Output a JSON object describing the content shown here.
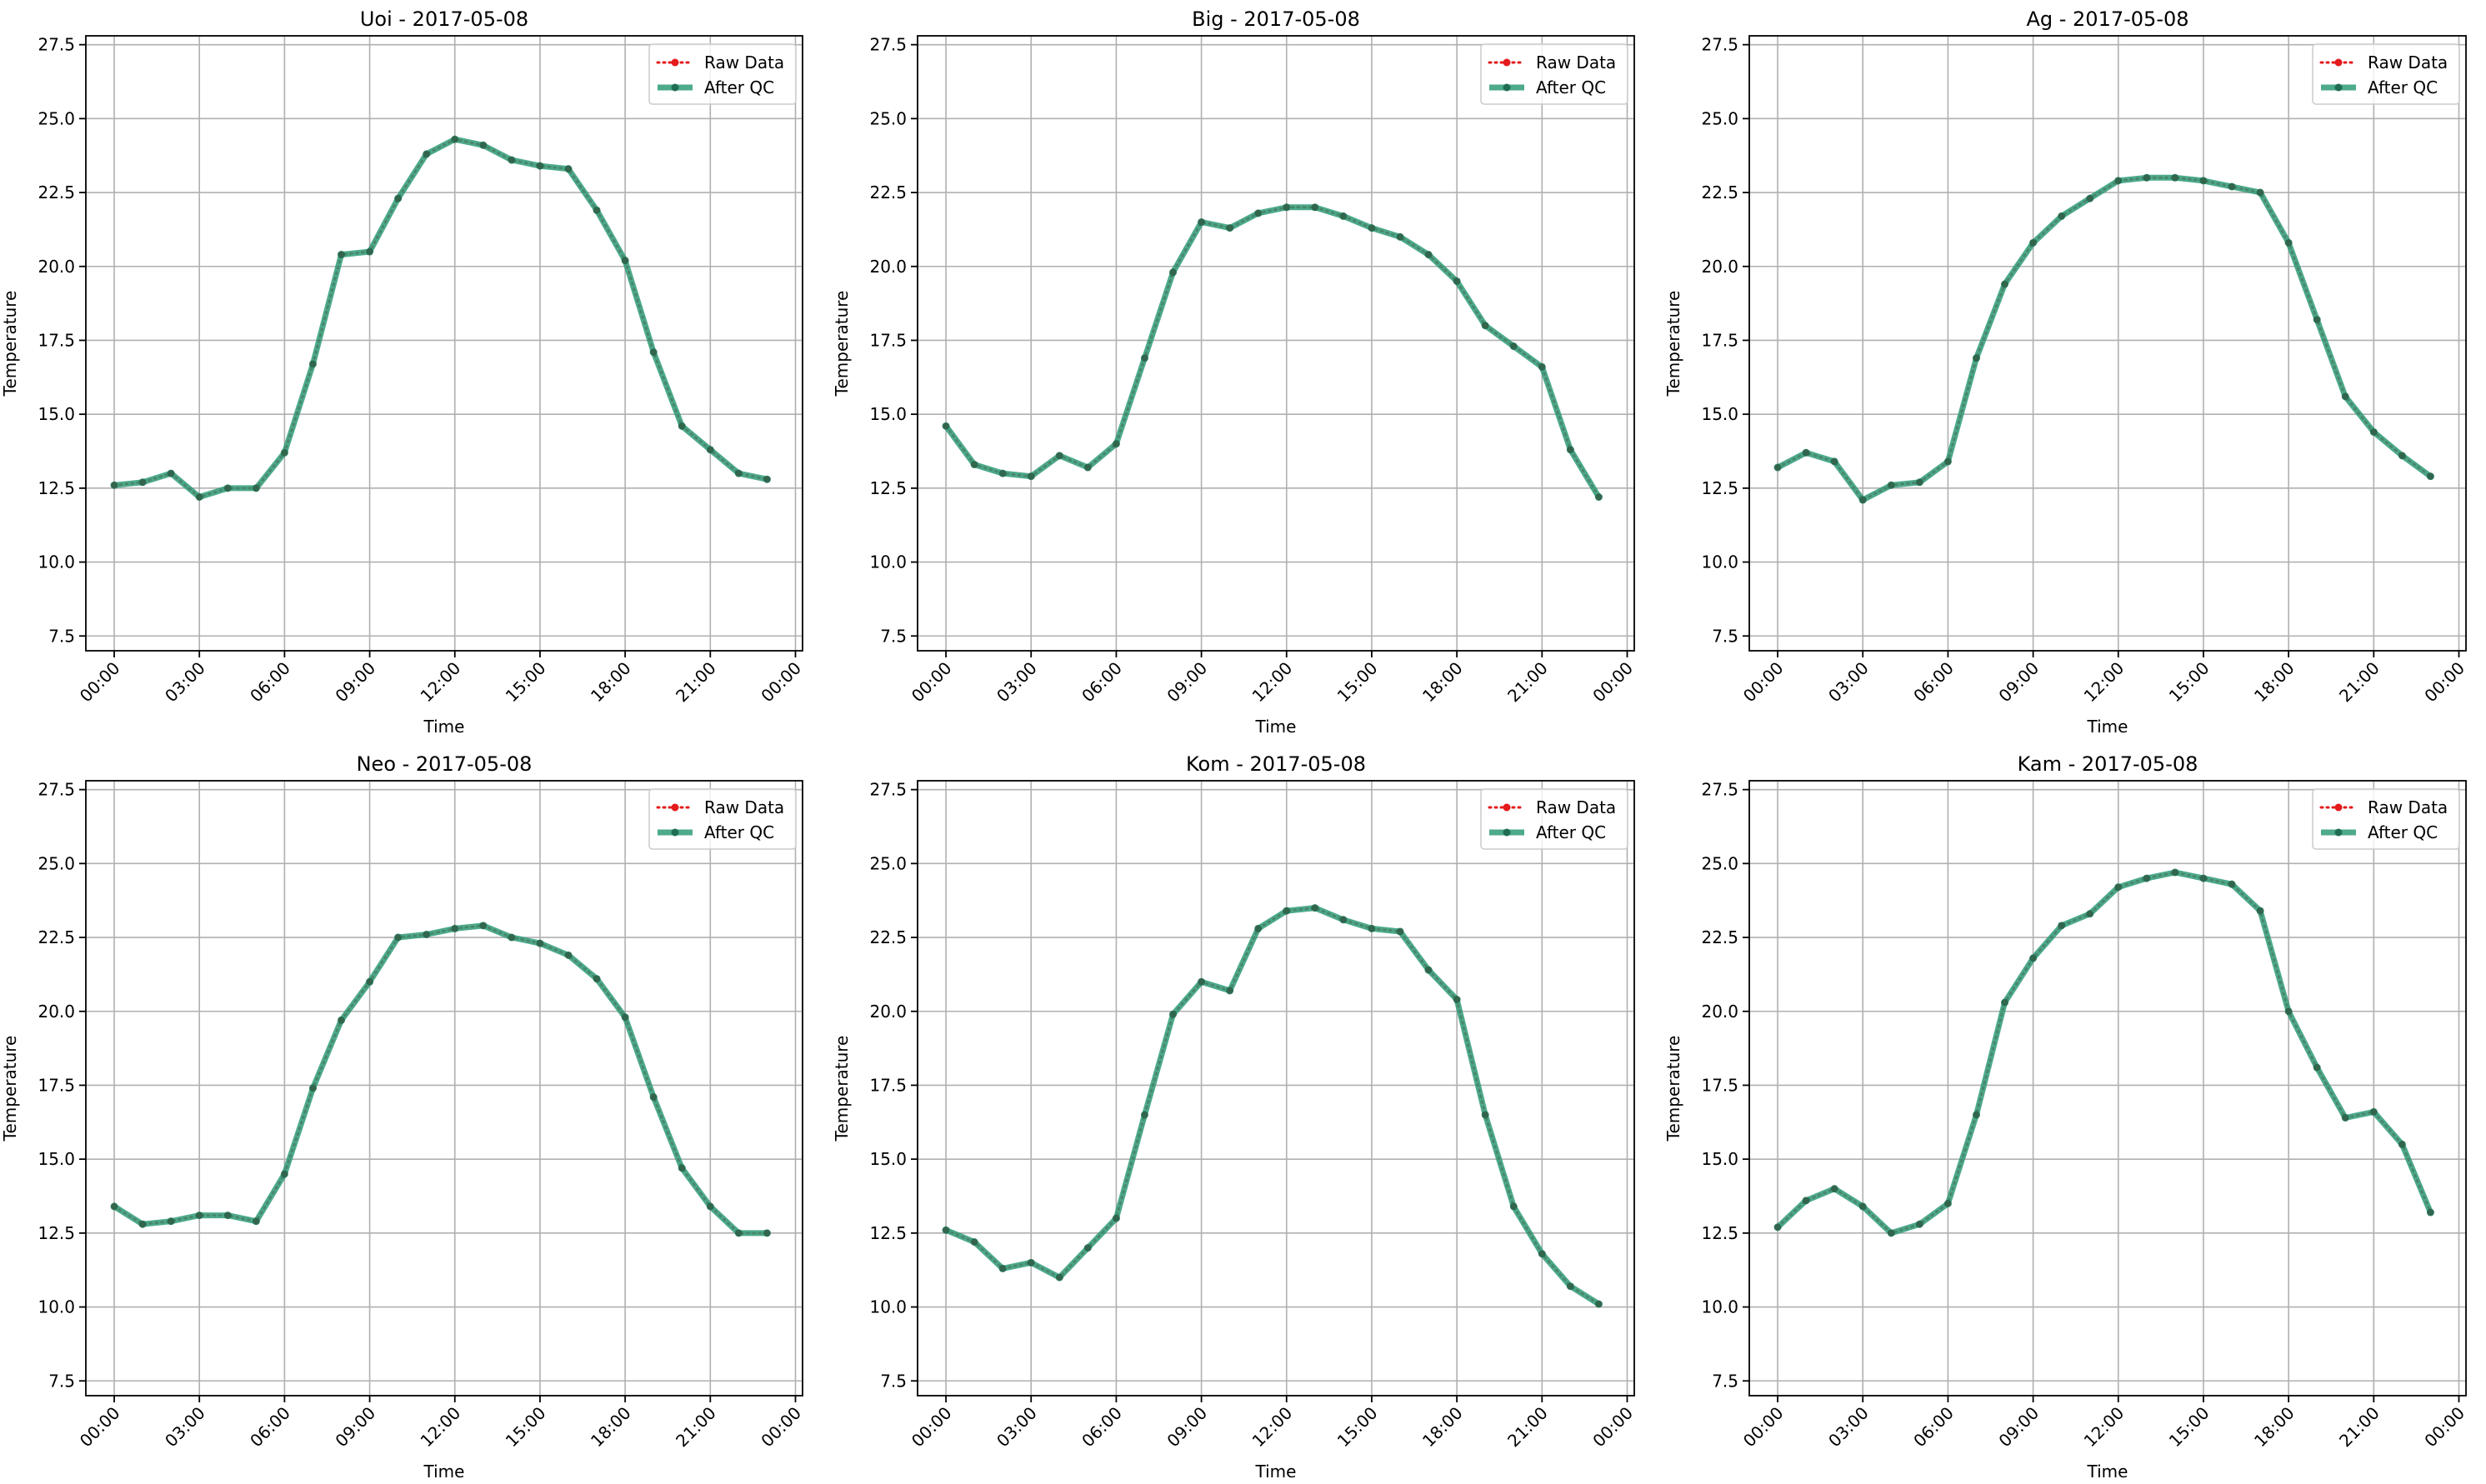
{
  "figure": {
    "colors": {
      "raw": "#e41a1c",
      "after_qc": "#2e9b78",
      "after_qc_marker": "#1f6e52",
      "grid": "#b0b0b0",
      "axes": "#000000"
    }
  },
  "chart_data": [
    {
      "type": "line",
      "title": "Uoi - 2017-05-08",
      "xlabel": "Time",
      "ylabel": "Temperature",
      "x_tick_labels": [
        "00:00",
        "03:00",
        "06:00",
        "09:00",
        "12:00",
        "15:00",
        "18:00",
        "21:00",
        "00:00"
      ],
      "y_tick_labels": [
        "7.5",
        "10.0",
        "12.5",
        "15.0",
        "17.5",
        "20.0",
        "22.5",
        "25.0",
        "27.5"
      ],
      "xlim": [
        "2017-05-07 23:00",
        "2017-05-09 00:15"
      ],
      "ylim": [
        7.0,
        27.8
      ],
      "grid": true,
      "legend": {
        "position": "top-right",
        "entries": [
          "Raw Data",
          "After QC"
        ]
      },
      "x": [
        "00:00",
        "01:00",
        "02:00",
        "03:00",
        "04:00",
        "05:00",
        "06:00",
        "07:00",
        "08:00",
        "09:00",
        "10:00",
        "11:00",
        "12:00",
        "13:00",
        "14:00",
        "15:00",
        "16:00",
        "17:00",
        "18:00",
        "19:00",
        "20:00",
        "21:00",
        "22:00",
        "23:00"
      ],
      "series": [
        {
          "name": "Raw Data",
          "style": "dotted",
          "values": [
            12.6,
            12.7,
            13.0,
            12.2,
            12.5,
            12.5,
            13.7,
            16.7,
            20.4,
            20.5,
            22.3,
            23.8,
            24.3,
            24.1,
            23.6,
            23.4,
            23.3,
            21.9,
            20.2,
            17.1,
            14.6,
            13.8,
            13.0,
            12.8
          ]
        },
        {
          "name": "After QC",
          "style": "solid",
          "values": [
            12.6,
            12.7,
            13.0,
            12.2,
            12.5,
            12.5,
            13.7,
            16.7,
            20.4,
            20.5,
            22.3,
            23.8,
            24.3,
            24.1,
            23.6,
            23.4,
            23.3,
            21.9,
            20.2,
            17.1,
            14.6,
            13.8,
            13.0,
            12.8
          ]
        }
      ]
    },
    {
      "type": "line",
      "title": "Big - 2017-05-08",
      "xlabel": "Time",
      "ylabel": "Temperature",
      "x_tick_labels": [
        "00:00",
        "03:00",
        "06:00",
        "09:00",
        "12:00",
        "15:00",
        "18:00",
        "21:00",
        "00:00"
      ],
      "y_tick_labels": [
        "7.5",
        "10.0",
        "12.5",
        "15.0",
        "17.5",
        "20.0",
        "22.5",
        "25.0",
        "27.5"
      ],
      "xlim": [
        "2017-05-07 23:00",
        "2017-05-09 00:15"
      ],
      "ylim": [
        7.0,
        27.8
      ],
      "grid": true,
      "legend": {
        "position": "top-right",
        "entries": [
          "Raw Data",
          "After QC"
        ]
      },
      "x": [
        "00:00",
        "01:00",
        "02:00",
        "03:00",
        "04:00",
        "05:00",
        "06:00",
        "07:00",
        "08:00",
        "09:00",
        "10:00",
        "11:00",
        "12:00",
        "13:00",
        "14:00",
        "15:00",
        "16:00",
        "17:00",
        "18:00",
        "19:00",
        "20:00",
        "21:00",
        "22:00",
        "23:00"
      ],
      "series": [
        {
          "name": "Raw Data",
          "style": "dotted",
          "values": [
            14.6,
            13.3,
            13.0,
            12.9,
            13.6,
            13.2,
            14.0,
            16.9,
            19.8,
            21.5,
            21.3,
            21.8,
            22.0,
            22.0,
            21.7,
            21.3,
            21.0,
            20.4,
            19.5,
            18.0,
            17.3,
            16.6,
            13.8,
            12.2
          ]
        },
        {
          "name": "After QC",
          "style": "solid",
          "values": [
            14.6,
            13.3,
            13.0,
            12.9,
            13.6,
            13.2,
            14.0,
            16.9,
            19.8,
            21.5,
            21.3,
            21.8,
            22.0,
            22.0,
            21.7,
            21.3,
            21.0,
            20.4,
            19.5,
            18.0,
            17.3,
            16.6,
            13.8,
            12.2
          ]
        }
      ]
    },
    {
      "type": "line",
      "title": "Ag - 2017-05-08",
      "xlabel": "Time",
      "ylabel": "Temperature",
      "x_tick_labels": [
        "00:00",
        "03:00",
        "06:00",
        "09:00",
        "12:00",
        "15:00",
        "18:00",
        "21:00",
        "00:00"
      ],
      "y_tick_labels": [
        "7.5",
        "10.0",
        "12.5",
        "15.0",
        "17.5",
        "20.0",
        "22.5",
        "25.0",
        "27.5"
      ],
      "xlim": [
        "2017-05-07 23:00",
        "2017-05-09 00:15"
      ],
      "ylim": [
        7.0,
        27.8
      ],
      "grid": true,
      "legend": {
        "position": "top-right",
        "entries": [
          "Raw Data",
          "After QC"
        ]
      },
      "x": [
        "00:00",
        "01:00",
        "02:00",
        "03:00",
        "04:00",
        "05:00",
        "06:00",
        "07:00",
        "08:00",
        "09:00",
        "10:00",
        "11:00",
        "12:00",
        "13:00",
        "14:00",
        "15:00",
        "16:00",
        "17:00",
        "18:00",
        "19:00",
        "20:00",
        "21:00",
        "22:00",
        "23:00"
      ],
      "series": [
        {
          "name": "Raw Data",
          "style": "dotted",
          "values": [
            13.2,
            13.7,
            13.4,
            12.1,
            12.6,
            12.7,
            13.4,
            16.9,
            19.4,
            20.8,
            21.7,
            22.3,
            22.9,
            23.0,
            23.0,
            22.9,
            22.7,
            22.5,
            20.8,
            18.2,
            15.6,
            14.4,
            13.6,
            12.9
          ]
        },
        {
          "name": "After QC",
          "style": "solid",
          "values": [
            13.2,
            13.7,
            13.4,
            12.1,
            12.6,
            12.7,
            13.4,
            16.9,
            19.4,
            20.8,
            21.7,
            22.3,
            22.9,
            23.0,
            23.0,
            22.9,
            22.7,
            22.5,
            20.8,
            18.2,
            15.6,
            14.4,
            13.6,
            12.9
          ]
        }
      ]
    },
    {
      "type": "line",
      "title": "Neo - 2017-05-08",
      "xlabel": "Time",
      "ylabel": "Temperature",
      "x_tick_labels": [
        "00:00",
        "03:00",
        "06:00",
        "09:00",
        "12:00",
        "15:00",
        "18:00",
        "21:00",
        "00:00"
      ],
      "y_tick_labels": [
        "7.5",
        "10.0",
        "12.5",
        "15.0",
        "17.5",
        "20.0",
        "22.5",
        "25.0",
        "27.5"
      ],
      "xlim": [
        "2017-05-07 23:00",
        "2017-05-09 00:15"
      ],
      "ylim": [
        7.0,
        27.8
      ],
      "grid": true,
      "legend": {
        "position": "top-right",
        "entries": [
          "Raw Data",
          "After QC"
        ]
      },
      "x": [
        "00:00",
        "01:00",
        "02:00",
        "03:00",
        "04:00",
        "05:00",
        "06:00",
        "07:00",
        "08:00",
        "09:00",
        "10:00",
        "11:00",
        "12:00",
        "13:00",
        "14:00",
        "15:00",
        "16:00",
        "17:00",
        "18:00",
        "19:00",
        "20:00",
        "21:00",
        "22:00",
        "23:00"
      ],
      "series": [
        {
          "name": "Raw Data",
          "style": "dotted",
          "values": [
            13.4,
            12.8,
            12.9,
            13.1,
            13.1,
            12.9,
            14.5,
            17.4,
            19.7,
            21.0,
            22.5,
            22.6,
            22.8,
            22.9,
            22.5,
            22.3,
            21.9,
            21.1,
            19.8,
            17.1,
            14.7,
            13.4,
            12.5,
            12.5
          ]
        },
        {
          "name": "After QC",
          "style": "solid",
          "values": [
            13.4,
            12.8,
            12.9,
            13.1,
            13.1,
            12.9,
            14.5,
            17.4,
            19.7,
            21.0,
            22.5,
            22.6,
            22.8,
            22.9,
            22.5,
            22.3,
            21.9,
            21.1,
            19.8,
            17.1,
            14.7,
            13.4,
            12.5,
            12.5
          ]
        }
      ]
    },
    {
      "type": "line",
      "title": "Kom - 2017-05-08",
      "xlabel": "Time",
      "ylabel": "Temperature",
      "x_tick_labels": [
        "00:00",
        "03:00",
        "06:00",
        "09:00",
        "12:00",
        "15:00",
        "18:00",
        "21:00",
        "00:00"
      ],
      "y_tick_labels": [
        "7.5",
        "10.0",
        "12.5",
        "15.0",
        "17.5",
        "20.0",
        "22.5",
        "25.0",
        "27.5"
      ],
      "xlim": [
        "2017-05-07 23:00",
        "2017-05-09 00:15"
      ],
      "ylim": [
        7.0,
        27.8
      ],
      "grid": true,
      "legend": {
        "position": "top-right",
        "entries": [
          "Raw Data",
          "After QC"
        ]
      },
      "x": [
        "00:00",
        "01:00",
        "02:00",
        "03:00",
        "04:00",
        "05:00",
        "06:00",
        "07:00",
        "08:00",
        "09:00",
        "10:00",
        "11:00",
        "12:00",
        "13:00",
        "14:00",
        "15:00",
        "16:00",
        "17:00",
        "18:00",
        "19:00",
        "20:00",
        "21:00",
        "22:00",
        "23:00"
      ],
      "series": [
        {
          "name": "Raw Data",
          "style": "dotted",
          "values": [
            12.6,
            12.2,
            11.3,
            11.5,
            11.0,
            12.0,
            13.0,
            16.5,
            19.9,
            21.0,
            20.7,
            22.8,
            23.4,
            23.5,
            23.1,
            22.8,
            22.7,
            21.4,
            20.4,
            16.5,
            13.4,
            11.8,
            10.7,
            10.1
          ]
        },
        {
          "name": "After QC",
          "style": "solid",
          "values": [
            12.6,
            12.2,
            11.3,
            11.5,
            11.0,
            12.0,
            13.0,
            16.5,
            19.9,
            21.0,
            20.7,
            22.8,
            23.4,
            23.5,
            23.1,
            22.8,
            22.7,
            21.4,
            20.4,
            16.5,
            13.4,
            11.8,
            10.7,
            10.1
          ]
        }
      ]
    },
    {
      "type": "line",
      "title": "Kam - 2017-05-08",
      "xlabel": "Time",
      "ylabel": "Temperature",
      "x_tick_labels": [
        "00:00",
        "03:00",
        "06:00",
        "09:00",
        "12:00",
        "15:00",
        "18:00",
        "21:00",
        "00:00"
      ],
      "y_tick_labels": [
        "7.5",
        "10.0",
        "12.5",
        "15.0",
        "17.5",
        "20.0",
        "22.5",
        "25.0",
        "27.5"
      ],
      "xlim": [
        "2017-05-07 23:00",
        "2017-05-09 00:15"
      ],
      "ylim": [
        7.0,
        27.8
      ],
      "grid": true,
      "legend": {
        "position": "top-right",
        "entries": [
          "Raw Data",
          "After QC"
        ]
      },
      "x": [
        "00:00",
        "01:00",
        "02:00",
        "03:00",
        "04:00",
        "05:00",
        "06:00",
        "07:00",
        "08:00",
        "09:00",
        "10:00",
        "11:00",
        "12:00",
        "13:00",
        "14:00",
        "15:00",
        "16:00",
        "17:00",
        "18:00",
        "19:00",
        "20:00",
        "21:00",
        "22:00",
        "23:00"
      ],
      "series": [
        {
          "name": "Raw Data",
          "style": "dotted",
          "values": [
            12.7,
            13.6,
            14.0,
            13.4,
            12.5,
            12.8,
            13.5,
            16.5,
            20.3,
            21.8,
            22.9,
            23.3,
            24.2,
            24.5,
            24.7,
            24.5,
            24.3,
            23.4,
            20.0,
            18.1,
            16.4,
            16.6,
            15.5,
            13.2
          ]
        },
        {
          "name": "After QC",
          "style": "solid",
          "values": [
            12.7,
            13.6,
            14.0,
            13.4,
            12.5,
            12.8,
            13.5,
            16.5,
            20.3,
            21.8,
            22.9,
            23.3,
            24.2,
            24.5,
            24.7,
            24.5,
            24.3,
            23.4,
            20.0,
            18.1,
            16.4,
            16.6,
            15.5,
            13.2
          ]
        }
      ]
    }
  ]
}
